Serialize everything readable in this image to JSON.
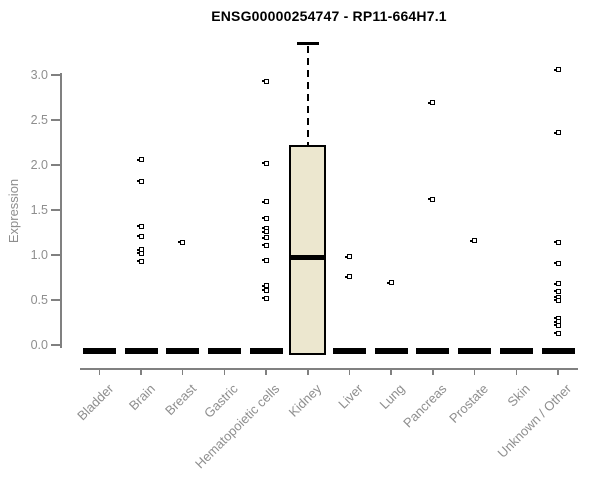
{
  "chart_data": {
    "type": "boxplot",
    "title": "ENSG00000254747 - RP11-664H7.1",
    "xlabel": "",
    "ylabel": "Expression",
    "ylim": [
      0,
      3.4
    ],
    "yticks": [
      0.0,
      0.5,
      1.0,
      1.5,
      2.0,
      2.5,
      3.0
    ],
    "ytick_labels": [
      "0.0",
      "0.5",
      "1.0",
      "1.5",
      "2.0",
      "2.5",
      "3.0"
    ],
    "grid": false,
    "legend": "none",
    "categories": [
      "Bladder",
      "Brain",
      "Breast",
      "Gastric",
      "Hematopoietic cells",
      "Kidney",
      "Liver",
      "Lung",
      "Pancreas",
      "Prostate",
      "Skin",
      "Unknown / Other"
    ],
    "boxes": [
      {
        "category": "Kidney",
        "q1": 0.0,
        "median": 0.97,
        "q3": 2.22,
        "whisker_low": 0.0,
        "whisker_high": 3.35
      }
    ],
    "zero_value_bars": {
      "value": 0.0,
      "categories": [
        "Bladder",
        "Brain",
        "Breast",
        "Gastric",
        "Hematopoietic cells",
        "Liver",
        "Lung",
        "Pancreas",
        "Prostate",
        "Skin",
        "Unknown / Other"
      ]
    },
    "points": {
      "Bladder": [],
      "Brain": [
        2.06,
        1.82,
        1.32,
        1.21,
        1.06,
        1.02,
        0.93
      ],
      "Breast": [
        1.14
      ],
      "Gastric": [],
      "Hematopoietic cells": [
        2.93,
        2.02,
        1.59,
        1.41,
        1.3,
        1.26,
        1.19,
        1.11,
        0.94,
        0.66,
        0.61,
        0.52
      ],
      "Kidney": [],
      "Liver": [
        0.98,
        0.76
      ],
      "Lung": [
        0.69
      ],
      "Pancreas": [
        2.69,
        1.62
      ],
      "Prostate": [
        1.16
      ],
      "Skin": [],
      "Unknown / Other": [
        3.06,
        2.36,
        1.14,
        0.91,
        0.68,
        0.6,
        0.53,
        0.5,
        0.3,
        0.26,
        0.22,
        0.13
      ]
    },
    "colors": {
      "box_fill": "#ece7cf",
      "box_border": "#000000",
      "median": "#000000",
      "axis": "#808080",
      "tick_text": "#8e8e8e",
      "title_text": "#000000",
      "background": "#ffffff"
    }
  }
}
